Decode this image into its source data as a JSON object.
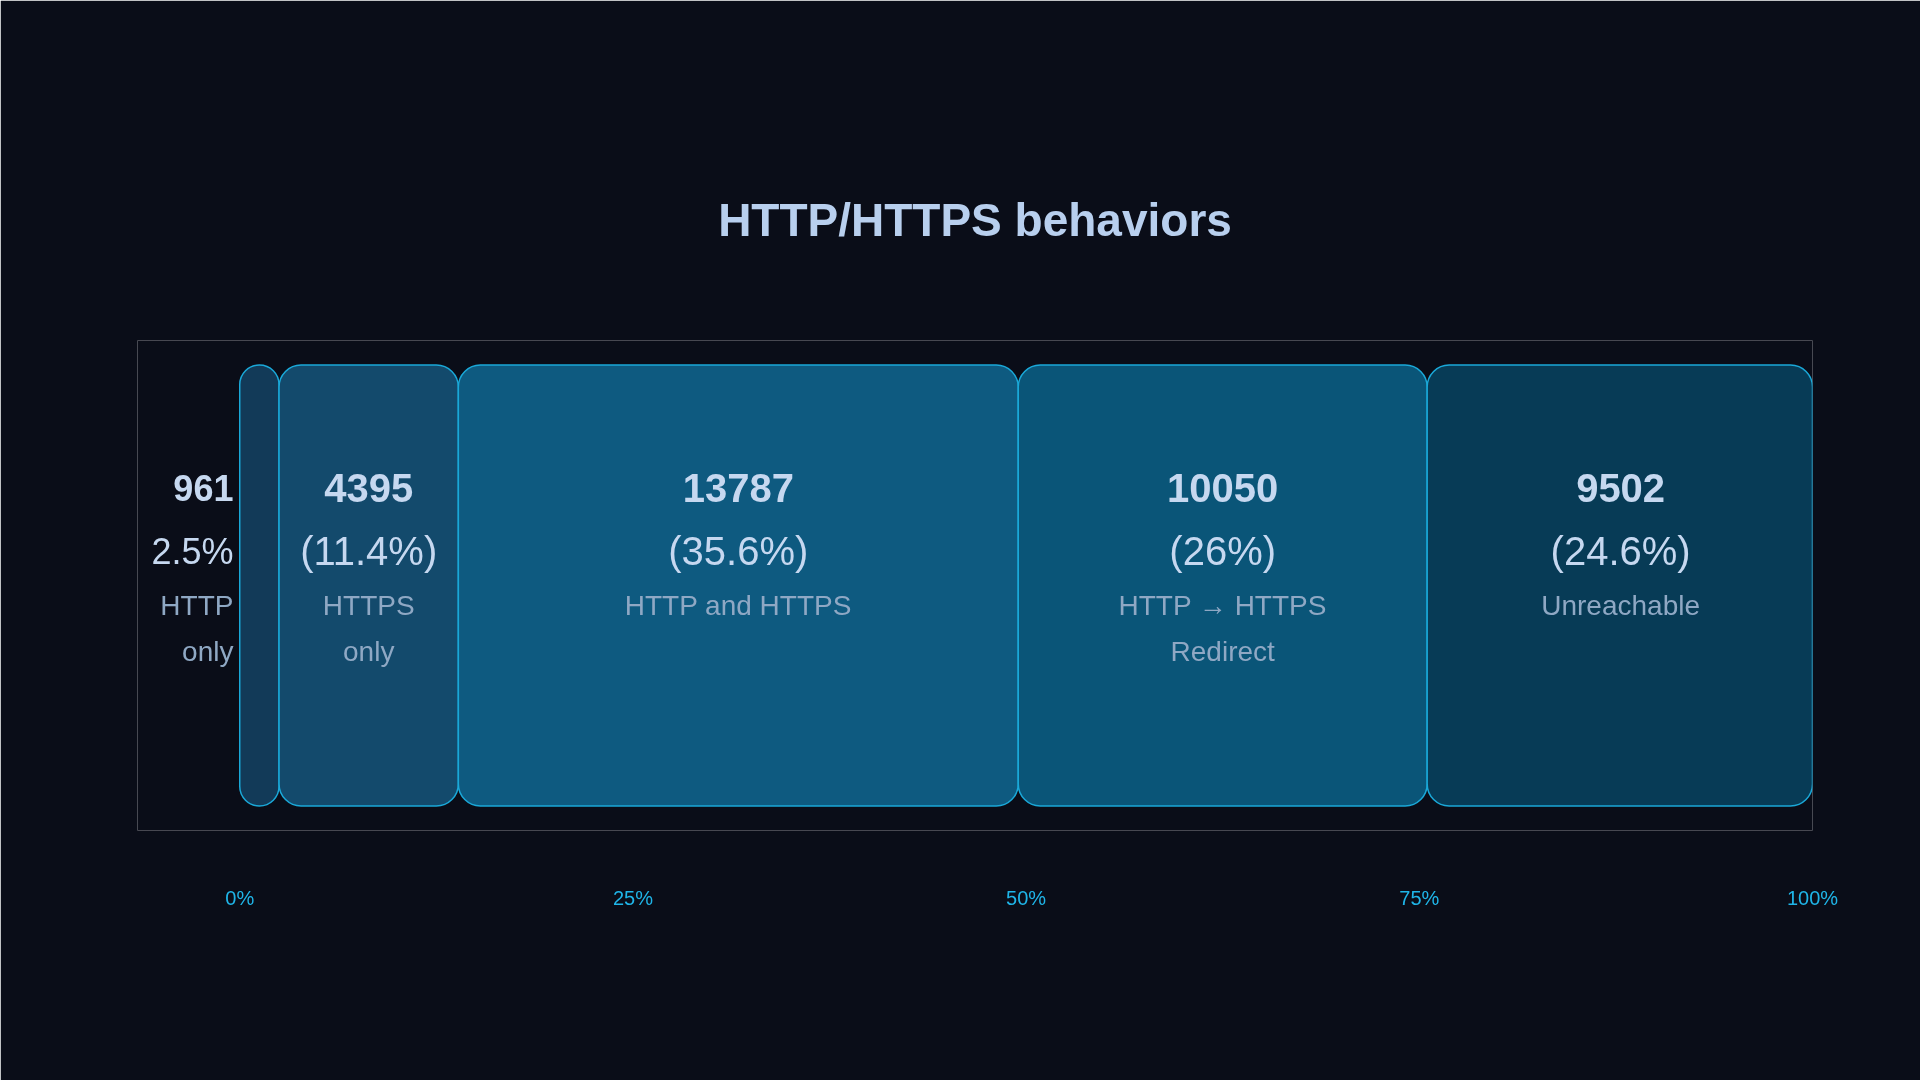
{
  "chart_data": {
    "type": "bar",
    "orientation": "horizontal",
    "stacked": true,
    "title": "HTTP/HTTPS behaviors",
    "categories": [
      null
    ],
    "series": [
      {
        "name": "HTTP only",
        "color": "#123a58",
        "values": [
          2.5
        ],
        "value_labels": [
          "961\n2.5%"
        ]
      },
      {
        "name": "HTTPS only",
        "color": "#134a6c",
        "values": [
          11.4
        ],
        "value_labels": [
          "4395\n(11.4%)"
        ]
      },
      {
        "name": "HTTP and HTTPS",
        "color": "#0e5a80",
        "values": [
          35.6
        ],
        "value_labels": [
          "13787\n(35.6%)"
        ]
      },
      {
        "name": "HTTP → HTTPS Redirect",
        "color": "#0a5578",
        "values": [
          26
        ],
        "value_labels": [
          "10050\n(26%)"
        ]
      },
      {
        "name": "Unreachable",
        "color": "#073b56",
        "values": [
          24.6
        ],
        "value_labels": [
          "9502\n(24.6%)"
        ]
      }
    ],
    "xlim": [
      -6.5,
      100
    ],
    "xticks": [
      {
        "value": 0,
        "label": "0%"
      },
      {
        "value": 25,
        "label": "25%"
      },
      {
        "value": 50,
        "label": "50%"
      },
      {
        "value": 75,
        "label": "75%"
      },
      {
        "value": 100,
        "label": "100%"
      }
    ],
    "tick_labels": "x",
    "grid": false
  }
}
